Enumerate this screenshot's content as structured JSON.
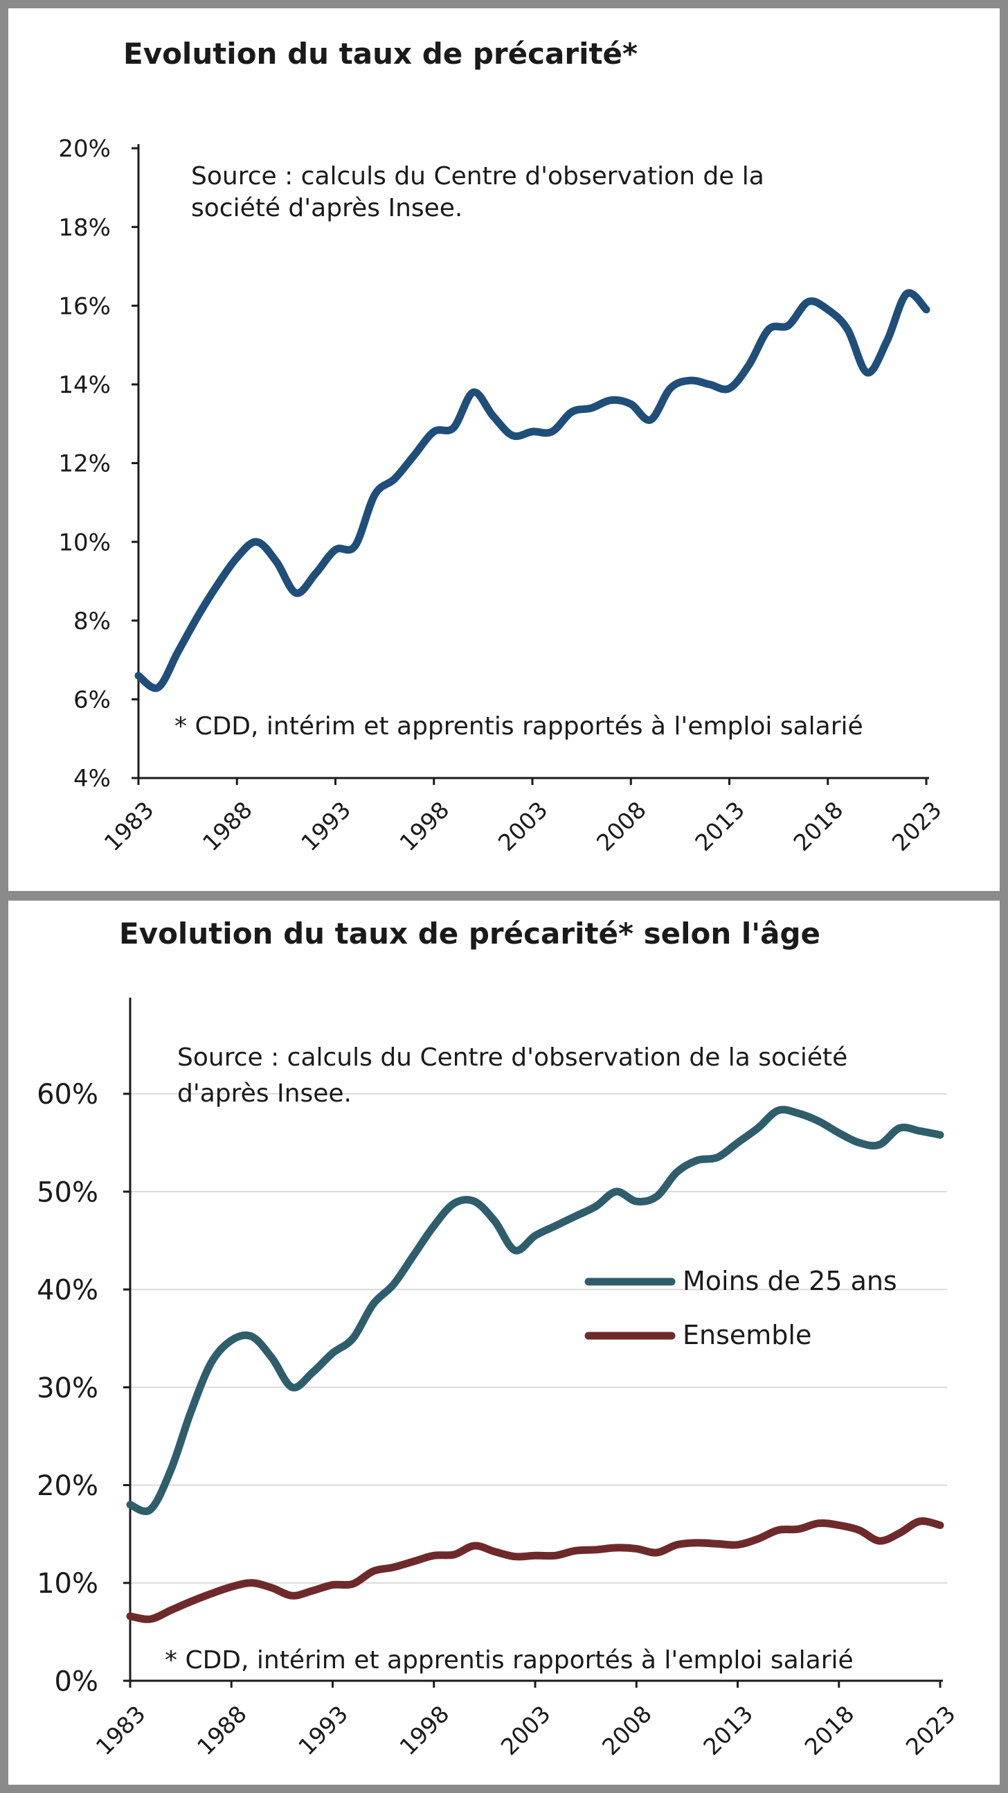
{
  "chart_data": [
    {
      "type": "line",
      "title": "Evolution du taux de précarité*",
      "source": "Source : calculs du Centre d'observation de la société d'après Insee.",
      "note": "* CDD, intérim et apprentis rapportés à l'emploi salarié",
      "ytick_labels": [
        "4%",
        "6%",
        "8%",
        "10%",
        "12%",
        "14%",
        "16%",
        "18%",
        "20%"
      ],
      "ylim": [
        4,
        20
      ],
      "xtick_labels": [
        "1983",
        "1988",
        "1993",
        "1998",
        "2003",
        "2008",
        "2013",
        "2018",
        "2023"
      ],
      "xlim": [
        1983,
        2023
      ],
      "grid": false,
      "colors": {
        "line": "#1f4e79"
      },
      "series": [
        {
          "x": [
            1983,
            1984,
            1985,
            1986,
            1987,
            1988,
            1989,
            1990,
            1991,
            1992,
            1993,
            1994,
            1995,
            1996,
            1997,
            1998,
            1999,
            2000,
            2001,
            2002,
            2003,
            2004,
            2005,
            2006,
            2007,
            2008,
            2009,
            2010,
            2011,
            2012,
            2013,
            2014,
            2015,
            2016,
            2017,
            2018,
            2019,
            2020,
            2021,
            2022,
            2023
          ],
          "values": [
            6.6,
            6.3,
            7.2,
            8.1,
            8.9,
            9.6,
            10.0,
            9.5,
            8.7,
            9.2,
            9.8,
            9.9,
            11.2,
            11.6,
            12.2,
            12.8,
            12.9,
            13.8,
            13.2,
            12.7,
            12.8,
            12.8,
            13.3,
            13.4,
            13.6,
            13.5,
            13.1,
            13.9,
            14.1,
            14.0,
            13.9,
            14.5,
            15.4,
            15.5,
            16.1,
            15.9,
            15.4,
            14.3,
            15.1,
            16.3,
            15.9
          ]
        }
      ]
    },
    {
      "type": "line",
      "title": "Evolution du taux de précarité* selon l'âge",
      "source": "Source : calculs du Centre d'observation de la société d'après Insee.",
      "note": "* CDD, intérim et apprentis rapportés à l'emploi salarié",
      "ytick_labels": [
        "0%",
        "10%",
        "20%",
        "30%",
        "40%",
        "50%",
        "60%"
      ],
      "ylim": [
        0,
        70
      ],
      "xtick_labels": [
        "1983",
        "1988",
        "1993",
        "1998",
        "2003",
        "2008",
        "2013",
        "2018",
        "2023"
      ],
      "xlim": [
        1983,
        2023
      ],
      "grid": true,
      "legend_placement": "center-right",
      "series": [
        {
          "name": "Moins de 25 ans",
          "color": "#2e5e6b",
          "x": [
            1983,
            1984,
            1985,
            1986,
            1987,
            1988,
            1989,
            1990,
            1991,
            1992,
            1993,
            1994,
            1995,
            1996,
            1997,
            1998,
            1999,
            2000,
            2001,
            2002,
            2003,
            2004,
            2005,
            2006,
            2007,
            2008,
            2009,
            2010,
            2011,
            2012,
            2013,
            2014,
            2015,
            2016,
            2017,
            2018,
            2019,
            2020,
            2021,
            2022,
            2023
          ],
          "values": [
            18.0,
            17.5,
            21.5,
            27.5,
            32.5,
            34.8,
            35.2,
            33.0,
            30.0,
            31.5,
            33.5,
            35.0,
            38.5,
            40.5,
            43.5,
            46.5,
            48.8,
            49.0,
            47.0,
            44.0,
            45.5,
            46.5,
            47.5,
            48.5,
            50.0,
            49.0,
            49.5,
            52.0,
            53.2,
            53.5,
            55.0,
            56.5,
            58.3,
            58.0,
            57.2,
            56.0,
            55.0,
            54.8,
            56.5,
            56.2,
            55.8
          ]
        },
        {
          "name": "Ensemble",
          "color": "#6e2a2a",
          "x": [
            1983,
            1984,
            1985,
            1986,
            1987,
            1988,
            1989,
            1990,
            1991,
            1992,
            1993,
            1994,
            1995,
            1996,
            1997,
            1998,
            1999,
            2000,
            2001,
            2002,
            2003,
            2004,
            2005,
            2006,
            2007,
            2008,
            2009,
            2010,
            2011,
            2012,
            2013,
            2014,
            2015,
            2016,
            2017,
            2018,
            2019,
            2020,
            2021,
            2022,
            2023
          ],
          "values": [
            6.6,
            6.3,
            7.2,
            8.1,
            8.9,
            9.6,
            10.0,
            9.5,
            8.7,
            9.2,
            9.8,
            9.9,
            11.2,
            11.6,
            12.2,
            12.8,
            12.9,
            13.8,
            13.2,
            12.7,
            12.8,
            12.8,
            13.3,
            13.4,
            13.6,
            13.5,
            13.1,
            13.9,
            14.1,
            14.0,
            13.9,
            14.5,
            15.4,
            15.5,
            16.1,
            15.9,
            15.4,
            14.3,
            15.1,
            16.3,
            15.9
          ]
        }
      ]
    }
  ]
}
